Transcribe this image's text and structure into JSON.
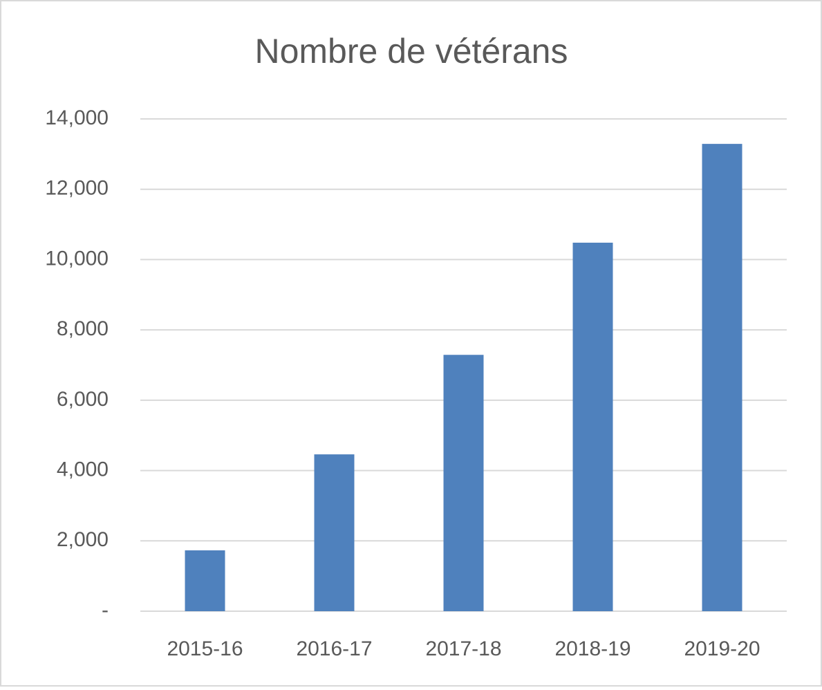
{
  "chart_data": {
    "type": "bar",
    "title": "Nombre de vétérans",
    "categories": [
      "2015-16",
      "2016-17",
      "2017-18",
      "2018-19",
      "2019-20"
    ],
    "values": [
      1730,
      4460,
      7290,
      10480,
      13290
    ],
    "color": "#4f81bd",
    "ylim": [
      0,
      14000
    ],
    "yticks": [
      {
        "value": 0,
        "label": "-"
      },
      {
        "value": 2000,
        "label": "2,000"
      },
      {
        "value": 4000,
        "label": "4,000"
      },
      {
        "value": 6000,
        "label": "6,000"
      },
      {
        "value": 8000,
        "label": "8,000"
      },
      {
        "value": 10000,
        "label": "10,000"
      },
      {
        "value": 12000,
        "label": "12,000"
      },
      {
        "value": 14000,
        "label": "14,000"
      }
    ],
    "grid": true
  }
}
